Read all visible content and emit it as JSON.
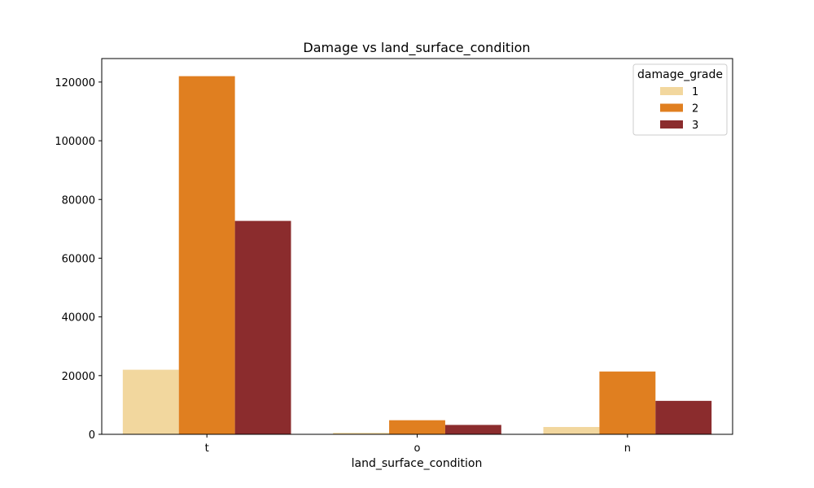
{
  "chart_data": {
    "type": "bar",
    "title": "Damage vs land_surface_condition",
    "xlabel": "land_surface_condition",
    "ylabel": "",
    "categories": [
      "t",
      "o",
      "n"
    ],
    "ylim": [
      0,
      128000
    ],
    "yticks": [
      0,
      20000,
      40000,
      60000,
      80000,
      100000,
      120000
    ],
    "grid": false,
    "legend": {
      "title": "damage_grade",
      "placement": "top-right"
    },
    "series": [
      {
        "name": "1",
        "color": "#f2d79e",
        "values": [
          22000,
          500,
          2500
        ]
      },
      {
        "name": "2",
        "color": "#e07f20",
        "values": [
          122000,
          4800,
          21400
        ]
      },
      {
        "name": "3",
        "color": "#8b2c2d",
        "values": [
          72700,
          3200,
          11400
        ]
      }
    ]
  }
}
